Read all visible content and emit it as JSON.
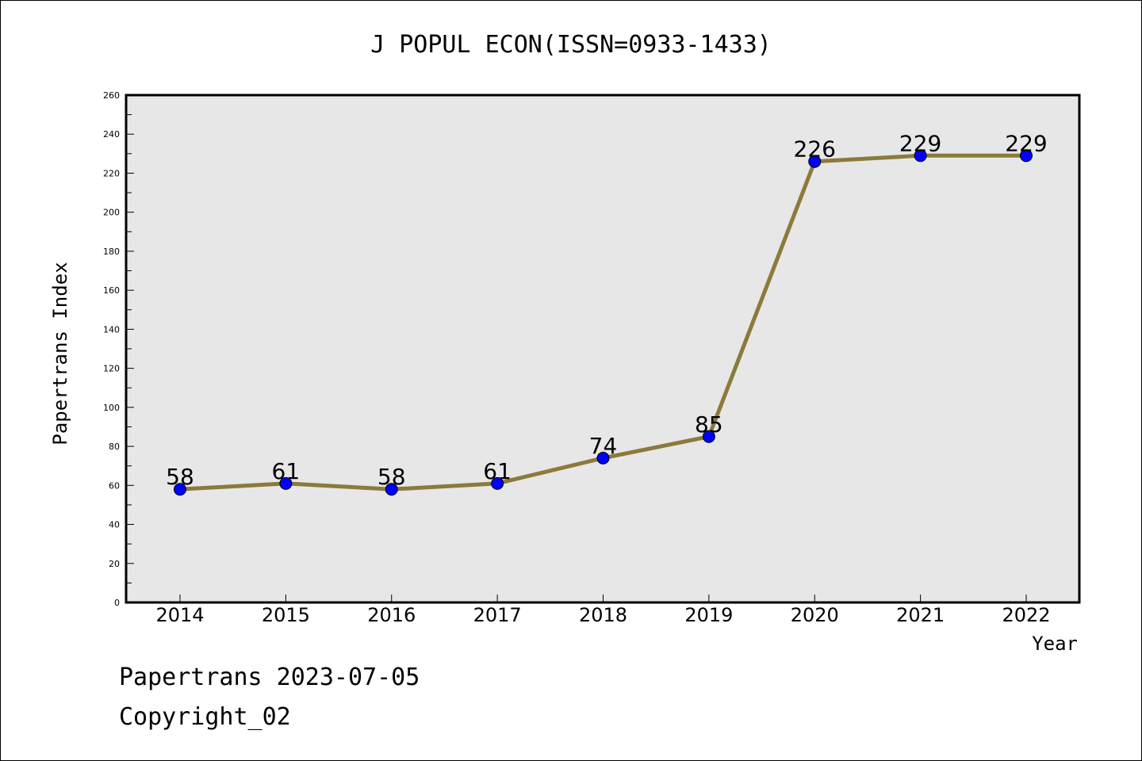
{
  "chart_data": {
    "type": "line",
    "title": "J POPUL ECON(ISSN=0933-1433)",
    "xlabel": "Year",
    "ylabel": "Papertrans Index",
    "categories": [
      "2014",
      "2015",
      "2016",
      "2017",
      "2018",
      "2019",
      "2020",
      "2021",
      "2022"
    ],
    "series": [
      {
        "values": [
          58,
          61,
          58,
          61,
          74,
          85,
          226,
          229,
          229
        ]
      }
    ],
    "ylim": [
      0,
      260
    ],
    "yticks": [
      0,
      20,
      40,
      60,
      80,
      100,
      120,
      140,
      160,
      180,
      200,
      220,
      240,
      260
    ],
    "grid": false,
    "data_labels": true,
    "colors": {
      "line": "#8b7a3a",
      "marker": "#0000ff",
      "plot_bg": "#e7e7e7"
    }
  },
  "footer": {
    "line1": "Papertrans 2023-07-05",
    "line2": "Copyright_02"
  }
}
